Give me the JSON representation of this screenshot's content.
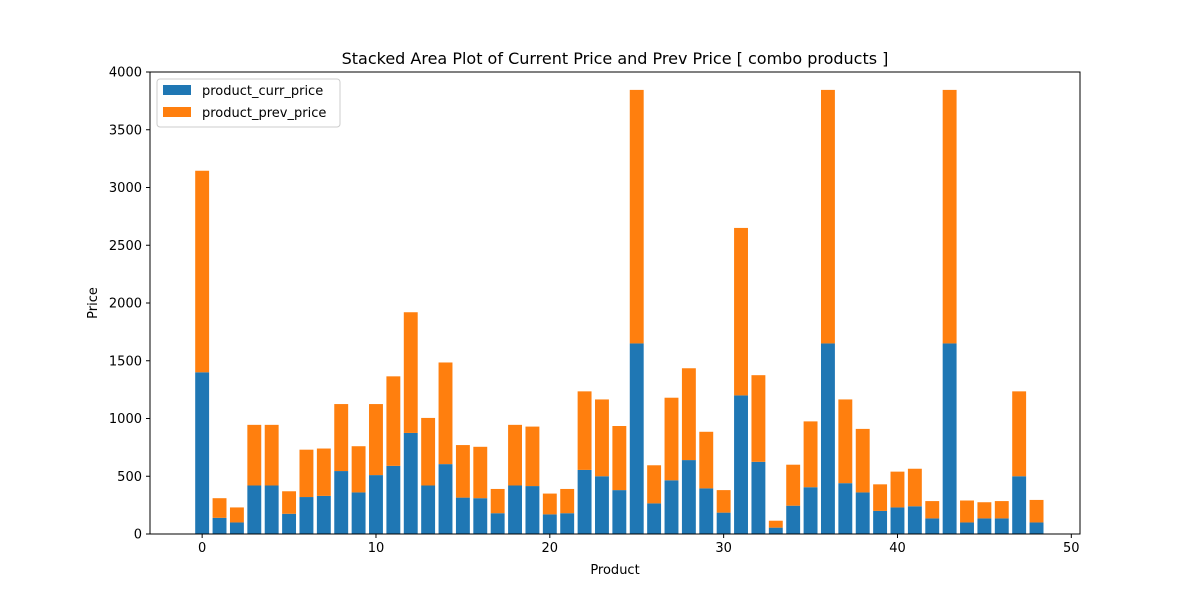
{
  "chart_data": {
    "type": "bar",
    "stacked": true,
    "title": "Stacked Area Plot of Current Price and Prev Price [ combo products ]",
    "xlabel": "Product",
    "ylabel": "Price",
    "xlim": [
      -3,
      50.5
    ],
    "ylim": [
      0,
      4000
    ],
    "xticks": [
      0,
      10,
      20,
      30,
      40,
      50
    ],
    "yticks": [
      0,
      500,
      1000,
      1500,
      2000,
      2500,
      3000,
      3500,
      4000
    ],
    "grid": false,
    "legend_position": "top-left",
    "x": [
      0,
      1,
      2,
      3,
      4,
      5,
      6,
      7,
      8,
      9,
      10,
      11,
      12,
      13,
      14,
      15,
      16,
      17,
      18,
      19,
      20,
      21,
      22,
      23,
      24,
      25,
      26,
      27,
      28,
      29,
      30,
      31,
      32,
      33,
      34,
      35,
      36,
      37,
      38,
      39,
      40,
      41,
      42,
      43,
      44,
      45,
      46,
      47,
      48
    ],
    "series": [
      {
        "name": "product_curr_price",
        "color": "#1f77b4",
        "values": [
          1400,
          140,
          100,
          420,
          420,
          175,
          320,
          330,
          545,
          360,
          510,
          590,
          875,
          420,
          605,
          315,
          310,
          180,
          420,
          415,
          170,
          180,
          555,
          500,
          380,
          1650,
          265,
          465,
          640,
          395,
          185,
          1200,
          625,
          55,
          245,
          405,
          1650,
          440,
          360,
          200,
          230,
          240,
          135,
          1650,
          100,
          135,
          135,
          500,
          100
        ]
      },
      {
        "name": "product_prev_price",
        "color": "#ff7f0e",
        "values": [
          1745,
          170,
          130,
          525,
          525,
          195,
          410,
          410,
          580,
          400,
          615,
          775,
          1045,
          585,
          880,
          455,
          445,
          210,
          525,
          515,
          180,
          210,
          680,
          665,
          555,
          2195,
          330,
          715,
          795,
          490,
          195,
          1450,
          750,
          60,
          355,
          570,
          2195,
          725,
          550,
          230,
          310,
          325,
          150,
          2195,
          190,
          140,
          150,
          735,
          195
        ]
      }
    ]
  }
}
